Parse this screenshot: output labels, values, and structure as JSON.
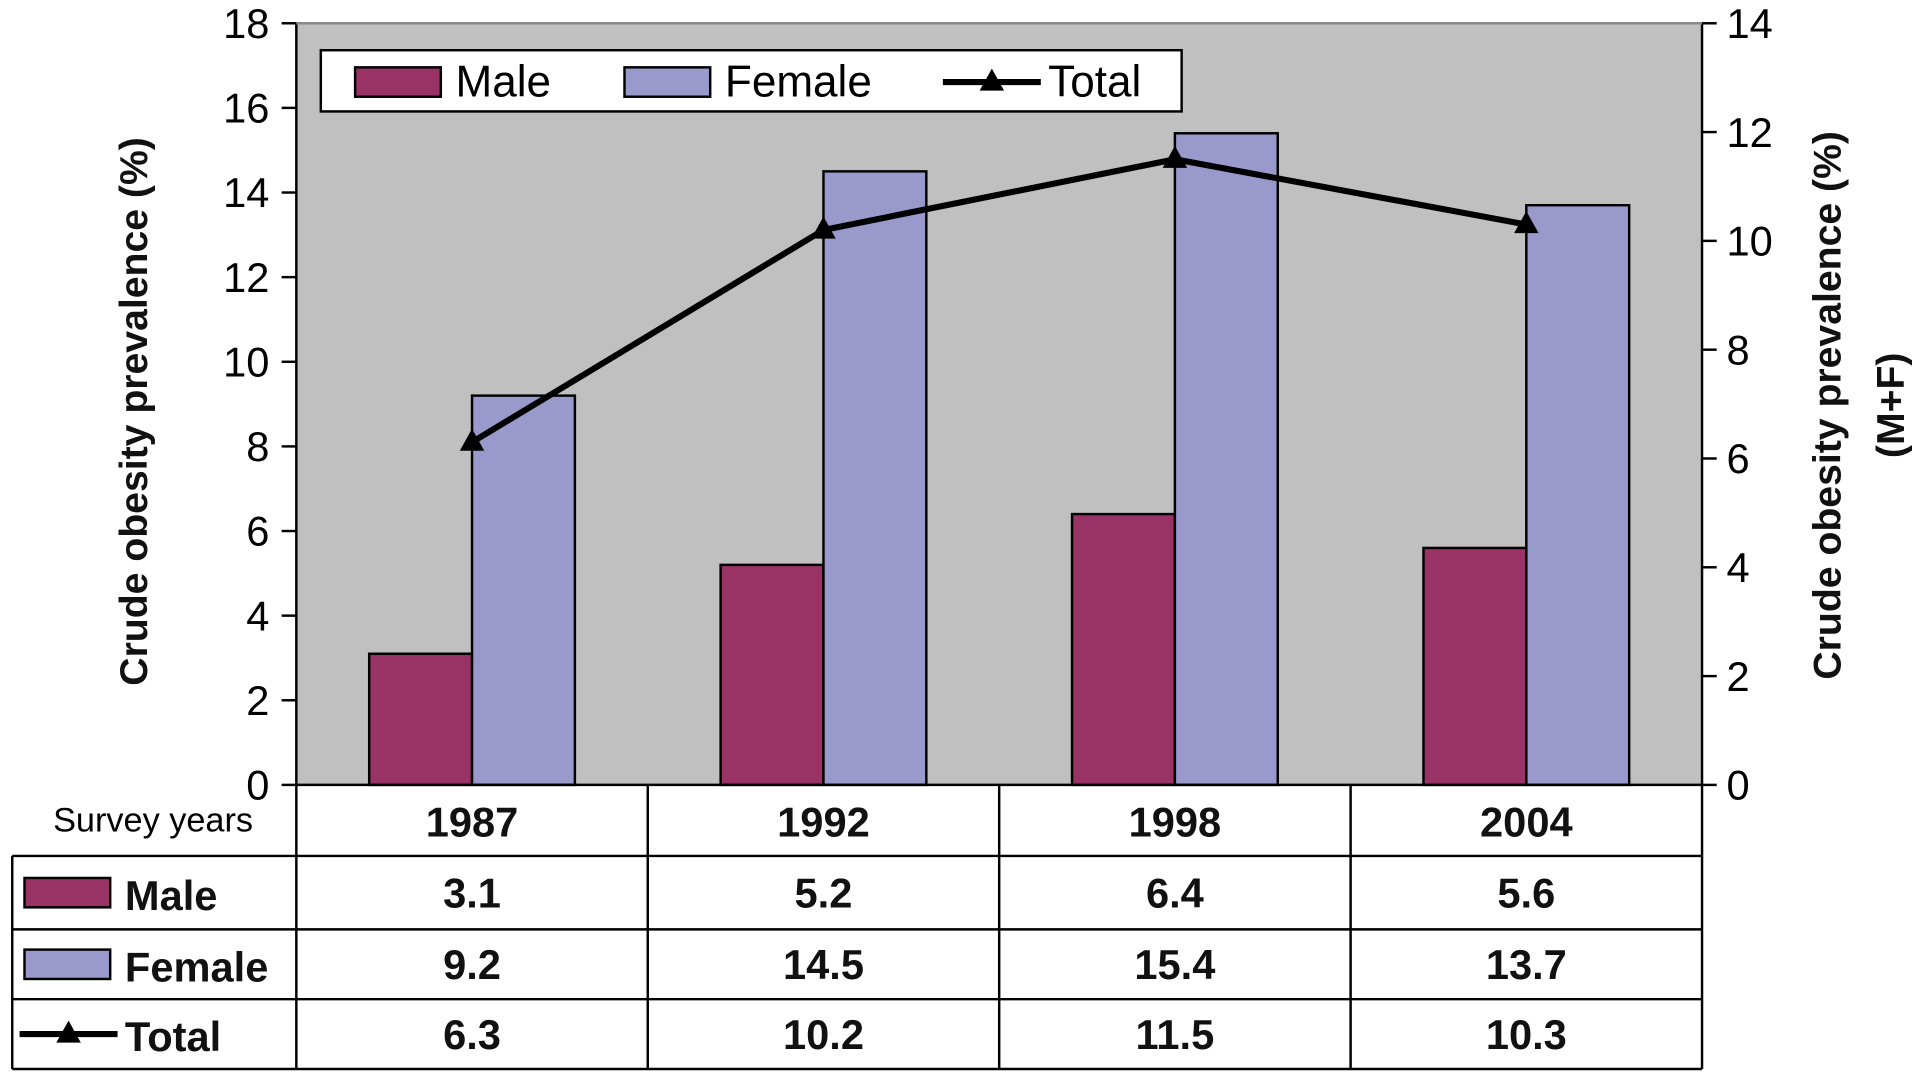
{
  "chart_data": {
    "type": "bar",
    "categories": [
      "1987",
      "1992",
      "1998",
      "2004"
    ],
    "series": [
      {
        "name": "Male",
        "kind": "bar",
        "axis": "left",
        "color": "#993366",
        "values": [
          3.1,
          5.2,
          6.4,
          5.6
        ]
      },
      {
        "name": "Female",
        "kind": "bar",
        "axis": "left",
        "color": "#9999CC",
        "values": [
          9.2,
          14.5,
          15.4,
          13.7
        ]
      },
      {
        "name": "Total",
        "kind": "line",
        "axis": "right",
        "color": "#000000",
        "values": [
          6.3,
          10.2,
          11.5,
          10.3
        ]
      }
    ],
    "ylabel": "Crude obesity prevalence (%)",
    "y2label_line1": "Crude obesity prevalence (%)",
    "y2label_line2": "(M+F)",
    "ylim": [
      0,
      18
    ],
    "y2lim": [
      0,
      14
    ],
    "yticks": [
      0,
      2,
      4,
      6,
      8,
      10,
      12,
      14,
      16,
      18
    ],
    "y2ticks": [
      0,
      2,
      4,
      6,
      8,
      10,
      12,
      14
    ],
    "legend_position": "top-left",
    "plot_background": "#C0C0C0",
    "table_header_label": "Survey years",
    "table_values": {
      "Male": [
        "3.1",
        "5.2",
        "6.4",
        "5.6"
      ],
      "Female": [
        "9.2",
        "14.5",
        "15.4",
        "13.7"
      ],
      "Total": [
        "6.3",
        "10.2",
        "11.5",
        "10.3"
      ]
    }
  }
}
